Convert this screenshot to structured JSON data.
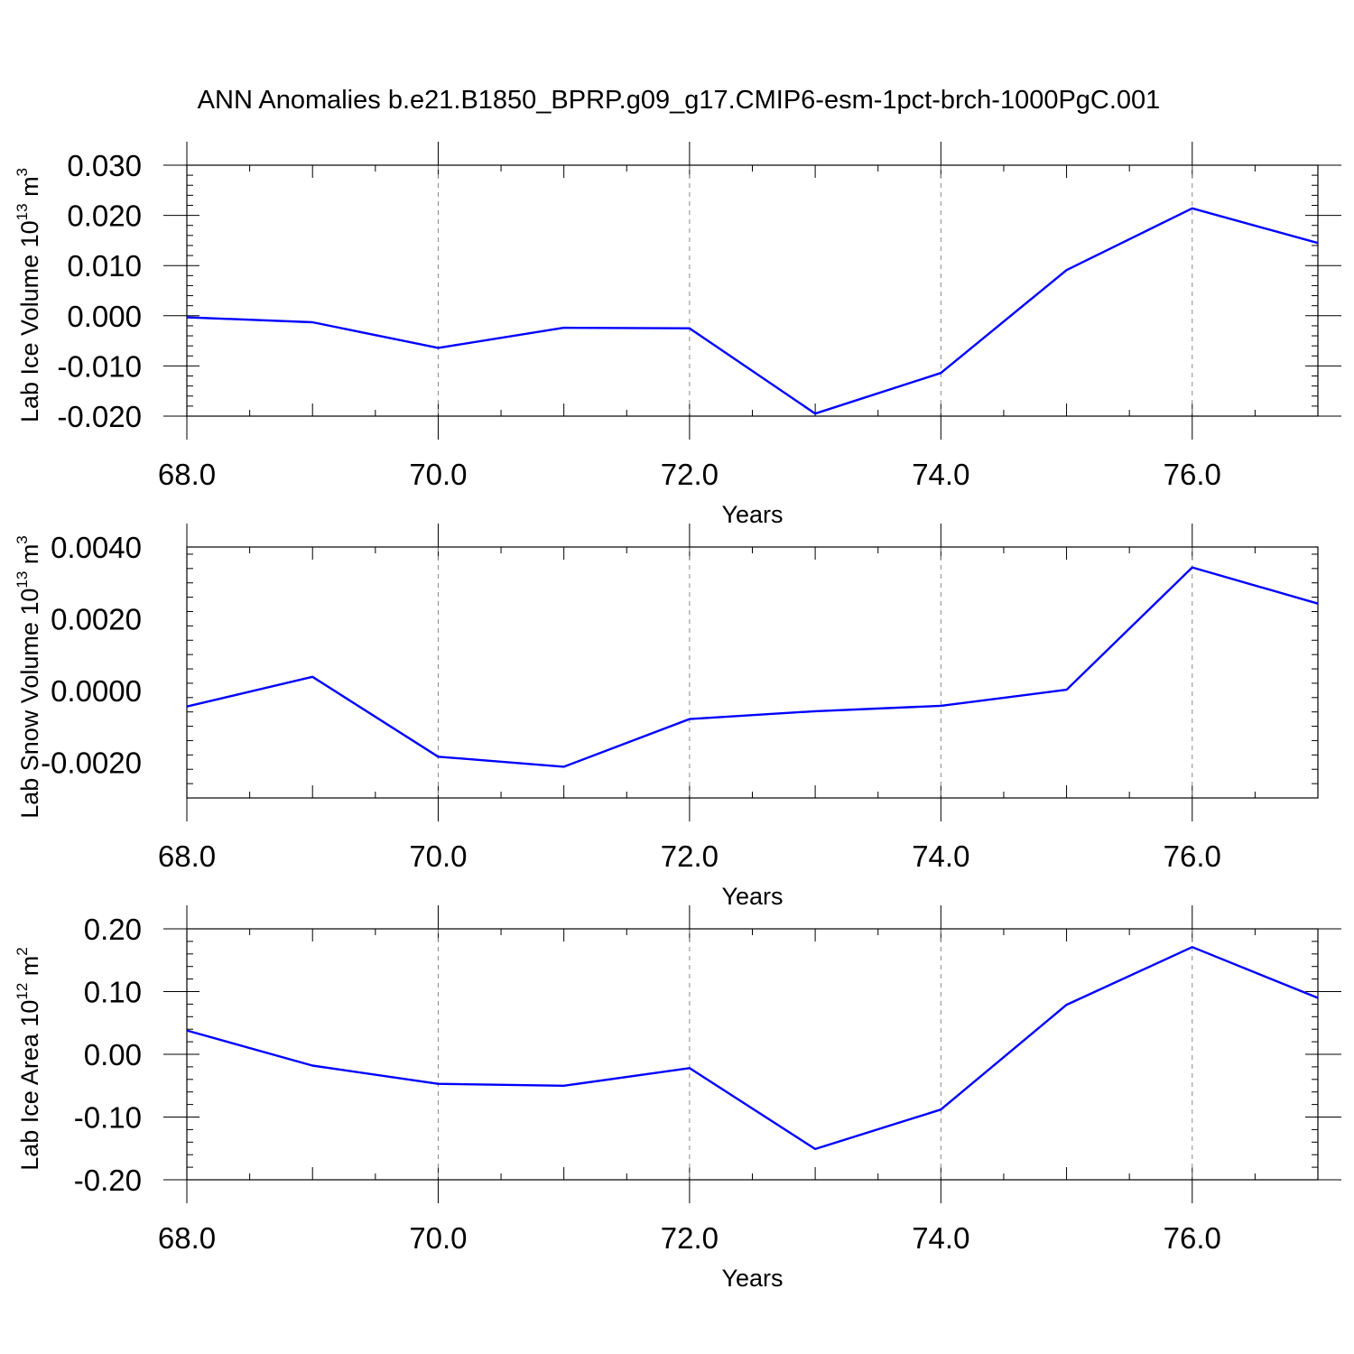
{
  "title": "ANN Anomalies b.e21.B1850_BPRP.g09_g17.CMIP6-esm-1pct-brch-1000PgC.001",
  "line_color": "#0000ff",
  "chart_data": [
    {
      "type": "line",
      "ylabel": {
        "text": "Lab Ice Volume 10",
        "sup1": "13",
        "unit": " m",
        "sup2": "3"
      },
      "xlabel": "Years",
      "xlim": [
        68,
        77
      ],
      "ylim": [
        -0.02,
        0.03
      ],
      "x_ticks": [
        "68.0",
        "70.0",
        "72.0",
        "74.0",
        "76.0"
      ],
      "y_ticks": [
        "0.030",
        "0.020",
        "0.010",
        "0.000",
        "-0.010",
        "-0.020"
      ],
      "x": [
        68,
        69,
        70,
        71,
        72,
        73,
        74,
        75,
        76,
        77
      ],
      "values": [
        -0.0003,
        -0.0013,
        -0.0064,
        -0.0024,
        -0.0025,
        -0.0195,
        -0.0114,
        0.0091,
        0.0214,
        0.0145
      ]
    },
    {
      "type": "line",
      "ylabel": {
        "text": "Lab Snow Volume 10",
        "sup1": "13",
        "unit": " m",
        "sup2": "3"
      },
      "xlabel": "Years",
      "xlim": [
        68,
        77
      ],
      "ylim": [
        -0.003,
        0.004
      ],
      "x_ticks": [
        "68.0",
        "70.0",
        "72.0",
        "74.0",
        "76.0"
      ],
      "y_ticks": [
        "0.0040",
        "0.0020",
        "0.0000",
        "-0.0020"
      ],
      "x": [
        68,
        69,
        70,
        71,
        72,
        73,
        74,
        75,
        76,
        77
      ],
      "values": [
        -0.00045,
        0.00038,
        -0.00185,
        -0.00213,
        -0.0008,
        -0.00058,
        -0.00043,
        2e-05,
        0.00343,
        0.00242
      ]
    },
    {
      "type": "line",
      "ylabel": {
        "text": "Lab Ice Area 10",
        "sup1": "12",
        "unit": " m",
        "sup2": "2"
      },
      "xlabel": "Years",
      "xlim": [
        68,
        77
      ],
      "ylim": [
        -0.2,
        0.2
      ],
      "x_ticks": [
        "68.0",
        "70.0",
        "72.0",
        "74.0",
        "76.0"
      ],
      "y_ticks": [
        "0.20",
        "0.10",
        "0.00",
        "-0.10",
        "-0.20"
      ],
      "x": [
        68,
        69,
        70,
        71,
        72,
        73,
        74,
        75,
        76,
        77
      ],
      "values": [
        0.038,
        -0.018,
        -0.047,
        -0.05,
        -0.022,
        -0.151,
        -0.088,
        0.079,
        0.171,
        0.09
      ]
    }
  ]
}
